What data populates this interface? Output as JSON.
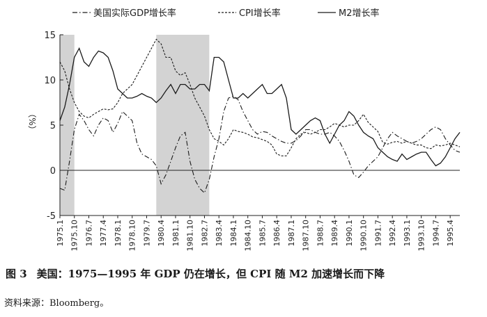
{
  "figure": {
    "number": "图 3",
    "title": "美国：1975—1995 年 GDP 仍在增长，但 CPI 随 M2 加速增长而下降",
    "source": "资料来源：Bloomberg。"
  },
  "chart_data": {
    "type": "line",
    "ylabel": "（%）",
    "ylim": [
      -5,
      15
    ],
    "yticks": [
      "15",
      "10",
      "5",
      "0",
      "-5"
    ],
    "x_tick_labels": [
      "1975.1",
      "1975.10",
      "1976.7",
      "1977.4",
      "1978.1",
      "1978.10",
      "1979.7",
      "1980.4",
      "1981.1",
      "1981.10",
      "1982.7",
      "1983.4",
      "1984.1",
      "1984.10",
      "1985.7",
      "1986.4",
      "1987.1",
      "1987.10",
      "1988.7",
      "1989.4",
      "1990.1",
      "1990.10",
      "1991.7",
      "1992.4",
      "1993.1",
      "1993.10",
      "1994.7",
      "1995.4"
    ],
    "xlim": [
      1975.0,
      1995.75
    ],
    "shaded_periods": [
      [
        1975.0,
        1975.75
      ],
      [
        1980.0,
        1982.75
      ]
    ],
    "legend_position": "top",
    "series": [
      {
        "name": "美国实际GDP增长率",
        "style": "dash-dot",
        "x": [
          1975.0,
          1975.25,
          1975.5,
          1975.75,
          1976.0,
          1976.25,
          1976.5,
          1976.75,
          1977.0,
          1977.25,
          1977.5,
          1977.75,
          1978.0,
          1978.25,
          1978.5,
          1978.75,
          1979.0,
          1979.25,
          1979.5,
          1979.75,
          1980.0,
          1980.25,
          1980.5,
          1980.75,
          1981.0,
          1981.25,
          1981.5,
          1981.75,
          1982.0,
          1982.25,
          1982.5,
          1982.75,
          1983.0,
          1983.25,
          1983.5,
          1983.75,
          1984.0,
          1984.25,
          1984.5,
          1984.75,
          1985.0,
          1985.25,
          1985.5,
          1985.75,
          1986.0,
          1986.25,
          1986.5,
          1986.75,
          1987.0,
          1987.25,
          1987.5,
          1987.75,
          1988.0,
          1988.25,
          1988.5,
          1988.75,
          1989.0,
          1989.25,
          1989.5,
          1989.75,
          1990.0,
          1990.25,
          1990.5,
          1990.75,
          1991.0,
          1991.25,
          1991.5,
          1991.75,
          1992.0,
          1992.25,
          1992.5,
          1992.75,
          1993.0,
          1993.25,
          1993.5,
          1993.75,
          1994.0,
          1994.25,
          1994.5,
          1994.75,
          1995.0,
          1995.25,
          1995.5,
          1995.75
        ],
        "values": [
          -2.0,
          -2.2,
          1.0,
          4.5,
          6.2,
          5.5,
          4.5,
          3.8,
          5.0,
          5.8,
          5.5,
          4.2,
          5.2,
          6.5,
          6.0,
          5.5,
          3.0,
          1.8,
          1.5,
          1.2,
          0.5,
          -1.5,
          -0.5,
          1.0,
          2.5,
          3.8,
          4.2,
          1.0,
          -1.0,
          -2.0,
          -2.5,
          -1.0,
          1.5,
          3.5,
          6.5,
          8.0,
          8.2,
          7.8,
          6.5,
          5.5,
          4.5,
          4.0,
          4.3,
          4.2,
          3.8,
          3.5,
          3.2,
          3.0,
          3.0,
          3.3,
          3.8,
          4.5,
          4.5,
          4.2,
          4.0,
          4.0,
          4.2,
          3.8,
          3.2,
          2.2,
          1.0,
          -0.5,
          -0.8,
          -0.2,
          0.5,
          1.0,
          1.5,
          2.5,
          3.5,
          4.2,
          3.8,
          3.5,
          3.2,
          3.0,
          3.2,
          3.5,
          4.0,
          4.5,
          4.8,
          4.5,
          3.5,
          2.8,
          2.2,
          2.0
        ]
      },
      {
        "name": "CPI增长率",
        "style": "dashed",
        "x": [
          1975.0,
          1975.25,
          1975.5,
          1975.75,
          1976.0,
          1976.25,
          1976.5,
          1976.75,
          1977.0,
          1977.25,
          1977.5,
          1977.75,
          1978.0,
          1978.25,
          1978.5,
          1978.75,
          1979.0,
          1979.25,
          1979.5,
          1979.75,
          1980.0,
          1980.25,
          1980.5,
          1980.75,
          1981.0,
          1981.25,
          1981.5,
          1981.75,
          1982.0,
          1982.25,
          1982.5,
          1982.75,
          1983.0,
          1983.25,
          1983.5,
          1983.75,
          1984.0,
          1984.25,
          1984.5,
          1984.75,
          1985.0,
          1985.25,
          1985.5,
          1985.75,
          1986.0,
          1986.25,
          1986.5,
          1986.75,
          1987.0,
          1987.25,
          1987.5,
          1987.75,
          1988.0,
          1988.25,
          1988.5,
          1988.75,
          1989.0,
          1989.25,
          1989.5,
          1989.75,
          1990.0,
          1990.25,
          1990.5,
          1990.75,
          1991.0,
          1991.25,
          1991.5,
          1991.75,
          1992.0,
          1992.25,
          1992.5,
          1992.75,
          1993.0,
          1993.25,
          1993.5,
          1993.75,
          1994.0,
          1994.25,
          1994.5,
          1994.75,
          1995.0,
          1995.25,
          1995.5,
          1995.75
        ],
        "values": [
          12.0,
          11.0,
          9.0,
          7.5,
          6.5,
          6.0,
          5.8,
          6.2,
          6.5,
          6.8,
          6.7,
          6.8,
          7.5,
          8.5,
          9.0,
          9.5,
          10.5,
          11.5,
          12.5,
          13.5,
          14.5,
          14.0,
          12.5,
          12.5,
          11.0,
          10.5,
          10.8,
          9.5,
          8.0,
          7.0,
          6.0,
          4.5,
          3.5,
          3.2,
          2.8,
          3.5,
          4.5,
          4.3,
          4.2,
          4.0,
          3.7,
          3.6,
          3.4,
          3.2,
          2.8,
          1.8,
          1.6,
          1.6,
          2.5,
          3.5,
          4.0,
          4.2,
          4.0,
          4.2,
          4.5,
          4.5,
          4.8,
          5.2,
          5.0,
          4.8,
          5.0,
          5.0,
          5.5,
          6.2,
          5.3,
          4.8,
          4.3,
          3.1,
          2.9,
          3.1,
          3.2,
          3.0,
          3.2,
          3.0,
          2.8,
          2.8,
          2.5,
          2.4,
          2.8,
          2.7,
          2.8,
          3.0,
          2.8,
          2.6
        ]
      },
      {
        "name": "M2增长率",
        "style": "solid",
        "x": [
          1975.0,
          1975.25,
          1975.5,
          1975.75,
          1976.0,
          1976.25,
          1976.5,
          1976.75,
          1977.0,
          1977.25,
          1977.5,
          1977.75,
          1978.0,
          1978.25,
          1978.5,
          1978.75,
          1979.0,
          1979.25,
          1979.5,
          1979.75,
          1980.0,
          1980.25,
          1980.5,
          1980.75,
          1981.0,
          1981.25,
          1981.5,
          1981.75,
          1982.0,
          1982.25,
          1982.5,
          1982.75,
          1983.0,
          1983.25,
          1983.5,
          1983.75,
          1984.0,
          1984.25,
          1984.5,
          1984.75,
          1985.0,
          1985.25,
          1985.5,
          1985.75,
          1986.0,
          1986.25,
          1986.5,
          1986.75,
          1987.0,
          1987.25,
          1987.5,
          1987.75,
          1988.0,
          1988.25,
          1988.5,
          1988.75,
          1989.0,
          1989.25,
          1989.5,
          1989.75,
          1990.0,
          1990.25,
          1990.5,
          1990.75,
          1991.0,
          1991.25,
          1991.5,
          1991.75,
          1992.0,
          1992.25,
          1992.5,
          1992.75,
          1993.0,
          1993.25,
          1993.5,
          1993.75,
          1994.0,
          1994.25,
          1994.5,
          1994.75,
          1995.0,
          1995.25,
          1995.5,
          1995.75
        ],
        "values": [
          5.5,
          7.0,
          9.5,
          12.5,
          13.5,
          12.0,
          11.5,
          12.5,
          13.2,
          13.0,
          12.5,
          11.0,
          9.0,
          8.5,
          8.0,
          8.0,
          8.2,
          8.5,
          8.2,
          8.0,
          7.5,
          8.0,
          8.8,
          9.5,
          8.5,
          9.5,
          9.5,
          9.0,
          9.0,
          9.5,
          9.5,
          8.8,
          12.5,
          12.5,
          12.0,
          10.0,
          8.0,
          8.0,
          8.5,
          8.0,
          8.5,
          9.0,
          9.5,
          8.5,
          8.5,
          9.0,
          9.5,
          8.0,
          4.5,
          4.0,
          4.5,
          5.0,
          5.5,
          5.8,
          5.5,
          4.0,
          3.0,
          4.0,
          5.0,
          5.5,
          6.5,
          6.0,
          5.0,
          4.2,
          3.8,
          3.5,
          2.5,
          2.0,
          1.5,
          1.2,
          1.0,
          1.8,
          1.2,
          1.5,
          1.8,
          2.0,
          2.0,
          1.2,
          0.5,
          0.8,
          1.5,
          2.5,
          3.5,
          4.2
        ]
      }
    ]
  }
}
